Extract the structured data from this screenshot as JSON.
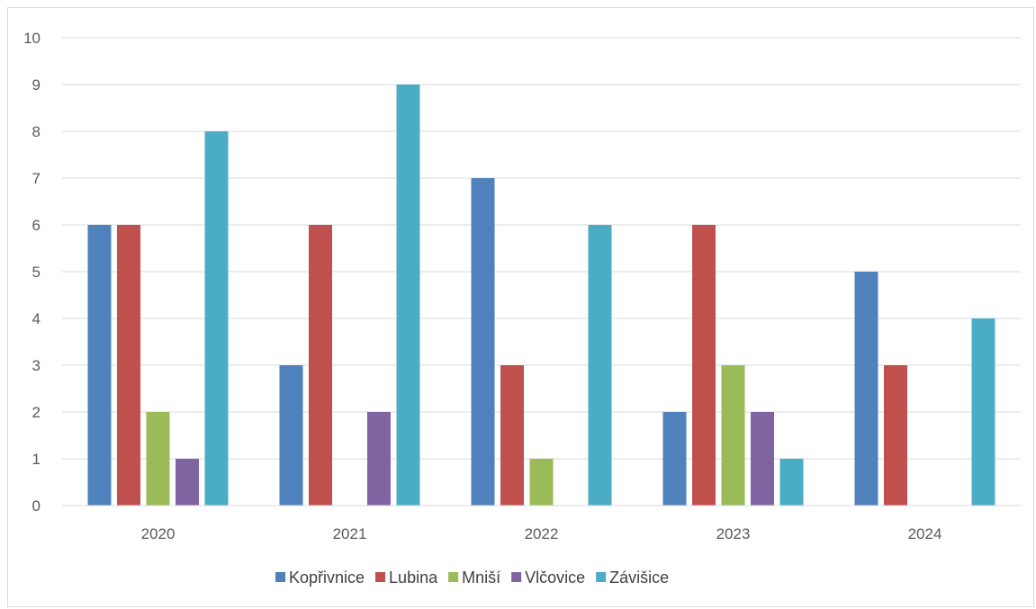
{
  "chart_data": {
    "type": "bar",
    "title": "",
    "xlabel": "",
    "ylabel": "",
    "categories": [
      "2020",
      "2021",
      "2022",
      "2023",
      "2024"
    ],
    "ylim": [
      0,
      10
    ],
    "yticks": [
      "0",
      "1",
      "2",
      "3",
      "4",
      "5",
      "6",
      "7",
      "8",
      "9",
      "10"
    ],
    "grid": true,
    "legend_position": "bottom",
    "series": [
      {
        "name": "Kopřivnice",
        "color": "#4f81bd",
        "values": [
          6,
          3,
          7,
          2,
          5
        ]
      },
      {
        "name": "Lubina",
        "color": "#c0504d",
        "values": [
          6,
          6,
          3,
          6,
          3
        ]
      },
      {
        "name": "Mniší",
        "color": "#9bbb59",
        "values": [
          2,
          0,
          1,
          3,
          0
        ]
      },
      {
        "name": "Vlčovice",
        "color": "#8064a2",
        "values": [
          1,
          2,
          0,
          2,
          0
        ]
      },
      {
        "name": "Závišice",
        "color": "#4bacc6",
        "values": [
          8,
          9,
          6,
          1,
          4
        ]
      }
    ]
  }
}
